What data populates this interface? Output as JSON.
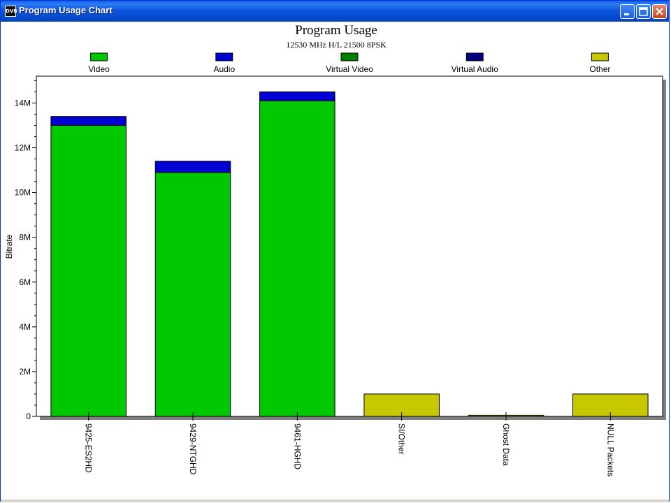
{
  "window": {
    "title": "Program Usage Chart",
    "icon": "dvb-logo-icon",
    "icon_text": "DVB"
  },
  "chart_data": {
    "type": "bar",
    "stacked": true,
    "title": "Program Usage",
    "subtitle": "12530 MHz H/L 21500 8PSK",
    "ylabel": "Bitrate",
    "xlabel": "",
    "ylim": [
      0,
      15200000
    ],
    "yticks": [
      0,
      2000000,
      4000000,
      6000000,
      8000000,
      10000000,
      12000000,
      14000000
    ],
    "ytick_labels": [
      "0",
      "2M",
      "4M",
      "6M",
      "8M",
      "10M",
      "12M",
      "14M"
    ],
    "grid": false,
    "legend_position": "top",
    "categories": [
      "9425-ES2HD",
      "9429-NTGHD",
      "9461-HGHD",
      "SI/Other",
      "Ghost Data",
      "NULL Packets"
    ],
    "series": [
      {
        "name": "Video",
        "color": "#00c800",
        "values": [
          13000000,
          10900000,
          14100000,
          0,
          0,
          0
        ]
      },
      {
        "name": "Audio",
        "color": "#0000d2",
        "values": [
          400000,
          500000,
          400000,
          0,
          0,
          0
        ]
      },
      {
        "name": "Virtual Video",
        "color": "#008000",
        "values": [
          0,
          0,
          0,
          0,
          0,
          0
        ]
      },
      {
        "name": "Virtual Audio",
        "color": "#000080",
        "values": [
          0,
          0,
          0,
          0,
          0,
          0
        ]
      },
      {
        "name": "Other",
        "color": "#c8c800",
        "values": [
          0,
          0,
          0,
          1000000,
          50000,
          1000000
        ]
      }
    ]
  }
}
